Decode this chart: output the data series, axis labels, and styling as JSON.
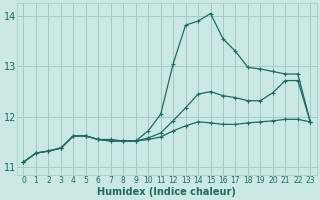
{
  "xlabel": "Humidex (Indice chaleur)",
  "bg_color": "#cce8e4",
  "grid_color": "#9eccc4",
  "line_color": "#1a6b60",
  "xlim": [
    -0.5,
    23.5
  ],
  "ylim": [
    10.85,
    14.25
  ],
  "yticks": [
    11,
    12,
    13,
    14
  ],
  "xticks": [
    0,
    1,
    2,
    3,
    4,
    5,
    6,
    7,
    8,
    9,
    10,
    11,
    12,
    13,
    14,
    15,
    16,
    17,
    18,
    19,
    20,
    21,
    22,
    23
  ],
  "line1_x": [
    0,
    1,
    2,
    3,
    4,
    5,
    6,
    7,
    8,
    9,
    10,
    11,
    12,
    13,
    14,
    15,
    16,
    17,
    18,
    19,
    20,
    21,
    22,
    23
  ],
  "line1_y": [
    11.1,
    11.28,
    11.32,
    11.38,
    11.62,
    11.62,
    11.55,
    11.52,
    11.52,
    11.52,
    11.72,
    12.05,
    13.05,
    13.82,
    13.9,
    14.05,
    13.55,
    13.3,
    12.98,
    12.95,
    12.9,
    12.85,
    12.85,
    11.9
  ],
  "line2_x": [
    0,
    1,
    2,
    3,
    4,
    5,
    6,
    7,
    8,
    9,
    10,
    11,
    12,
    13,
    14,
    15,
    16,
    17,
    18,
    19,
    20,
    21,
    22,
    23
  ],
  "line2_y": [
    11.1,
    11.28,
    11.32,
    11.38,
    11.62,
    11.62,
    11.55,
    11.52,
    11.52,
    11.52,
    11.58,
    11.68,
    11.92,
    12.18,
    12.45,
    12.5,
    12.42,
    12.38,
    12.32,
    12.32,
    12.48,
    12.72,
    12.72,
    11.9
  ],
  "line3_x": [
    0,
    1,
    2,
    3,
    4,
    5,
    6,
    7,
    8,
    9,
    10,
    11,
    12,
    13,
    14,
    15,
    16,
    17,
    18,
    19,
    20,
    21,
    22,
    23
  ],
  "line3_y": [
    11.1,
    11.28,
    11.32,
    11.38,
    11.62,
    11.62,
    11.55,
    11.55,
    11.52,
    11.52,
    11.55,
    11.6,
    11.72,
    11.82,
    11.9,
    11.88,
    11.85,
    11.85,
    11.88,
    11.9,
    11.92,
    11.95,
    11.95,
    11.9
  ]
}
